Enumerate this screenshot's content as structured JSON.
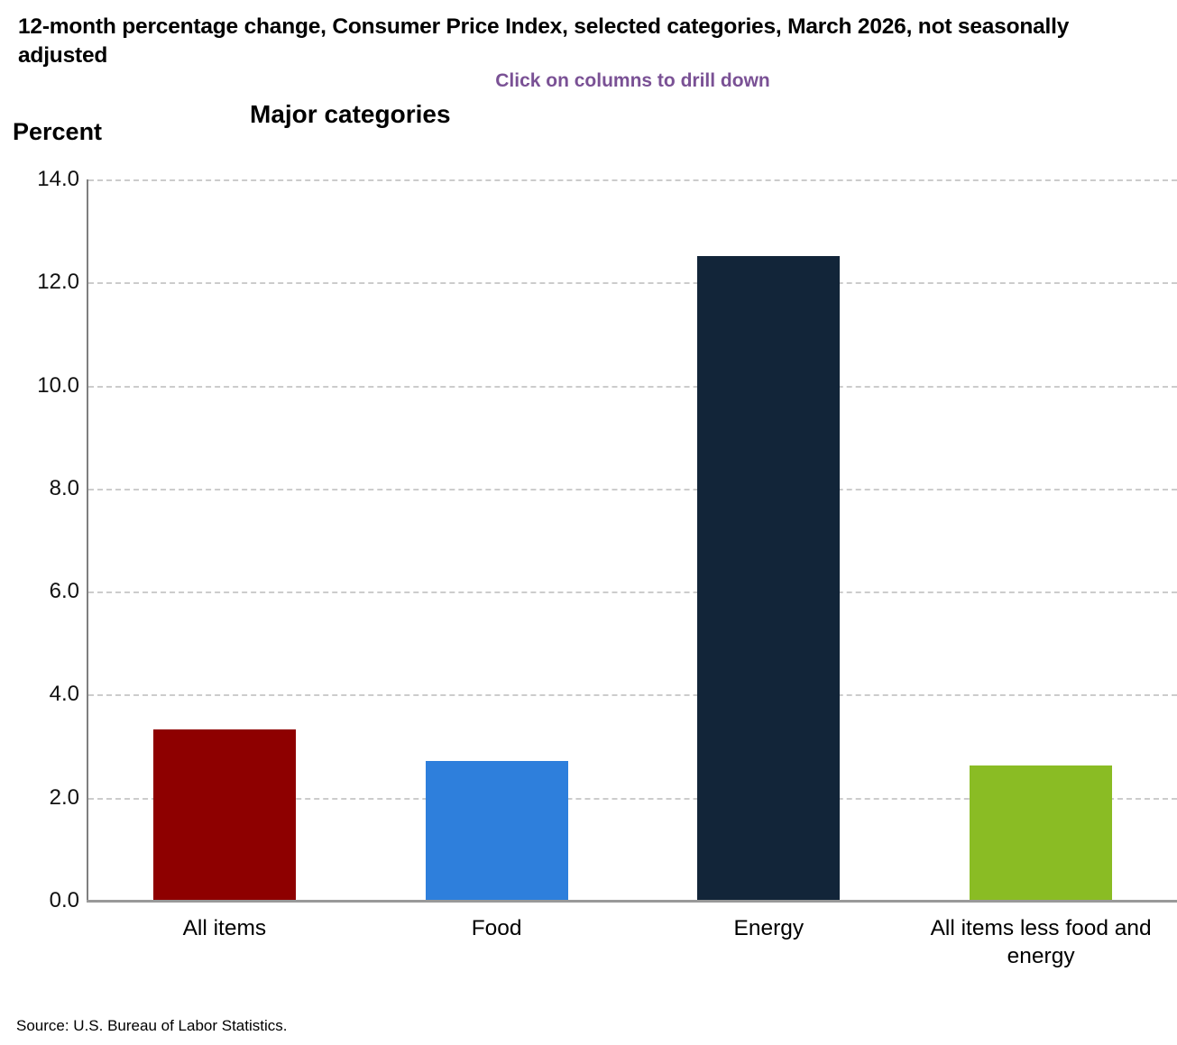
{
  "header": {
    "title": "12-month percentage change, Consumer Price Index, selected categories, March 2026, not seasonally adjusted",
    "subtitle": "Click on columns to drill down"
  },
  "chart": {
    "heading": "Major categories",
    "axis_label": "Percent"
  },
  "footer": {
    "source": "Source: U.S. Bureau of Labor Statistics."
  },
  "colors": {
    "subtitle_accent": "#7a5195",
    "gridline": "#cccccc",
    "axis_line": "#8c8c8c",
    "text": "#000000"
  },
  "chart_data": {
    "type": "bar",
    "title": "Major categories",
    "categories": [
      "All items",
      "Food",
      "Energy",
      "All items less food and energy"
    ],
    "values": [
      3.3,
      2.7,
      12.5,
      2.6
    ],
    "bar_colors": [
      "#8e0000",
      "#2e7fdc",
      "#122539",
      "#8abc24"
    ],
    "xlabel": "",
    "ylabel": "Percent",
    "ylim": [
      0,
      14
    ],
    "ytick_step": 2,
    "ytick_labels": [
      "0.0",
      "2.0",
      "4.0",
      "6.0",
      "8.0",
      "10.0",
      "12.0",
      "14.0"
    ],
    "grid": "horizontal-dashed",
    "legend": "none"
  }
}
